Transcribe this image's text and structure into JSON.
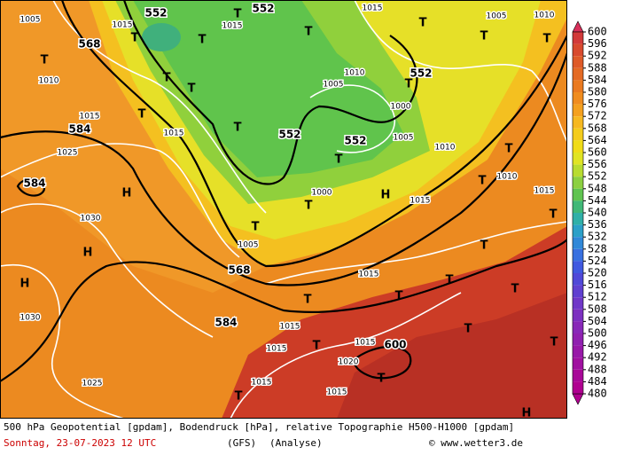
{
  "map": {
    "legend": {
      "levels": [
        600,
        596,
        592,
        588,
        584,
        580,
        576,
        572,
        568,
        564,
        560,
        556,
        552,
        548,
        544,
        540,
        536,
        532,
        528,
        524,
        520,
        516,
        512,
        508,
        504,
        500,
        496,
        492,
        488,
        484,
        480
      ],
      "colors": [
        "#d8305a",
        "#d23a3a",
        "#d84a2e",
        "#de5a28",
        "#e46a24",
        "#ea7a20",
        "#f08c1e",
        "#f4a01e",
        "#f6b820",
        "#f4cc1c",
        "#f0dc18",
        "#e0e424",
        "#b8dc30",
        "#8cd040",
        "#60c450",
        "#40b878",
        "#30b0a8",
        "#2ca0c8",
        "#3088d8",
        "#3870e0",
        "#4058e0",
        "#5048d8",
        "#6040d0",
        "#7038c8",
        "#7c30c0",
        "#8828b8",
        "#9020b0",
        "#9818a8",
        "#a010a0",
        "#a80898",
        "#b00090"
      ]
    },
    "labels": [
      "1005",
      "552",
      "T",
      "552",
      "1015",
      "T",
      "1005",
      "1010",
      "1015",
      "T",
      "1015",
      "T",
      "T",
      "T",
      "T",
      "568",
      "T",
      "1010",
      "552",
      "T",
      "1005",
      "1010",
      "T",
      "T",
      "1015",
      "T",
      "1000",
      "584",
      "1015",
      "T",
      "552",
      "552",
      "1005",
      "1010",
      "T",
      "T",
      "1025",
      "584",
      "H",
      "1000",
      "H",
      "T",
      "1010",
      "1015",
      "T",
      "T",
      "1030",
      "1005",
      "H",
      "T",
      "568",
      "H",
      "1015",
      "T",
      "T",
      "T",
      "T",
      "1030",
      "584",
      "T",
      "1015",
      "T",
      "1015",
      "600",
      "1020",
      "1015",
      "T",
      "1025",
      "1015",
      "1015",
      "T",
      "T",
      "H",
      "1015",
      "T"
    ],
    "footer": {
      "description": "500 hPa Geopotential [gpdam], Bodendruck [hPa], relative Topographie H500-H1000 [gpdam]",
      "date": "Sonntag, 23-07-2023  12 UTC",
      "model": "(GFS)",
      "run": "(Analyse)",
      "source": "© www.wetter3.de"
    }
  }
}
